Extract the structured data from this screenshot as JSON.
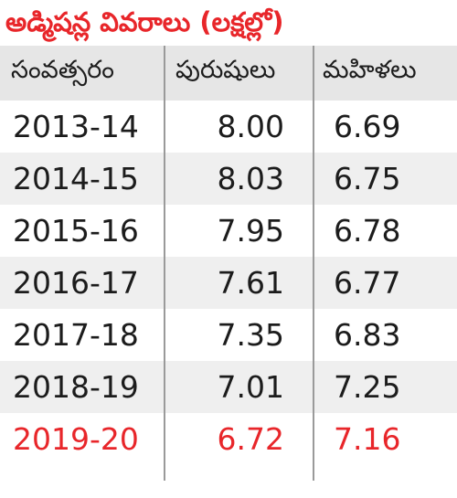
{
  "chart_data": {
    "type": "table",
    "title": "అడ్మిషన్ల వివరాలు (లక్షల్లో)",
    "columns": [
      "సంవత్సరం",
      "పురుషులు",
      "మహిళలు"
    ],
    "rows": [
      {
        "year": "2013-14",
        "men": "8.00",
        "women": "6.69"
      },
      {
        "year": "2014-15",
        "men": "8.03",
        "women": "6.75"
      },
      {
        "year": "2015-16",
        "men": "7.95",
        "women": "6.78"
      },
      {
        "year": "2016-17",
        "men": "7.61",
        "women": "6.77"
      },
      {
        "year": "2017-18",
        "men": "7.35",
        "women": "6.83"
      },
      {
        "year": "2018-19",
        "men": "7.01",
        "women": "7.25"
      },
      {
        "year": "2019-20",
        "men": "6.72",
        "women": "7.16"
      }
    ],
    "highlight_row_year": "2019-20",
    "colors": {
      "title": "#e8262a",
      "highlight_text": "#e8262a",
      "header_background": "#e6e6e6",
      "stripe_background": "#efefef",
      "divider": "#9a9a9a"
    }
  }
}
